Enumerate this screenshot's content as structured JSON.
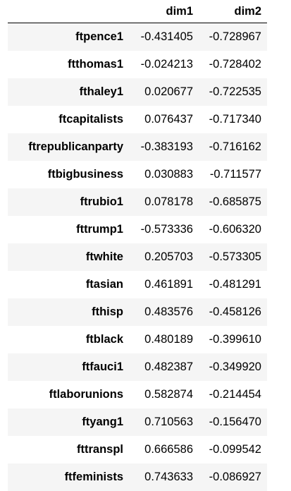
{
  "table": {
    "columns": [
      "dim1",
      "dim2"
    ],
    "rows": [
      {
        "index": "ftpence1",
        "dim1": "-0.431405",
        "dim2": "-0.728967"
      },
      {
        "index": "ftthomas1",
        "dim1": "-0.024213",
        "dim2": "-0.728402"
      },
      {
        "index": "fthaley1",
        "dim1": "0.020677",
        "dim2": "-0.722535"
      },
      {
        "index": "ftcapitalists",
        "dim1": "0.076437",
        "dim2": "-0.717340"
      },
      {
        "index": "ftrepublicanparty",
        "dim1": "-0.383193",
        "dim2": "-0.716162"
      },
      {
        "index": "ftbigbusiness",
        "dim1": "0.030883",
        "dim2": "-0.711577"
      },
      {
        "index": "ftrubio1",
        "dim1": "0.078178",
        "dim2": "-0.685875"
      },
      {
        "index": "fttrump1",
        "dim1": "-0.573336",
        "dim2": "-0.606320"
      },
      {
        "index": "ftwhite",
        "dim1": "0.205703",
        "dim2": "-0.573305"
      },
      {
        "index": "ftasian",
        "dim1": "0.461891",
        "dim2": "-0.481291"
      },
      {
        "index": "fthisp",
        "dim1": "0.483576",
        "dim2": "-0.458126"
      },
      {
        "index": "ftblack",
        "dim1": "0.480189",
        "dim2": "-0.399610"
      },
      {
        "index": "ftfauci1",
        "dim1": "0.482387",
        "dim2": "-0.349920"
      },
      {
        "index": "ftlaborunions",
        "dim1": "0.582874",
        "dim2": "-0.214454"
      },
      {
        "index": "ftyang1",
        "dim1": "0.710563",
        "dim2": "-0.156470"
      },
      {
        "index": "fttranspl",
        "dim1": "0.666586",
        "dim2": "-0.099542"
      },
      {
        "index": "ftfeminists",
        "dim1": "0.743633",
        "dim2": "-0.086927"
      }
    ]
  },
  "colors": {
    "stripe": "#f5f5f5",
    "header_rule": "#000000",
    "text": "#000000"
  }
}
